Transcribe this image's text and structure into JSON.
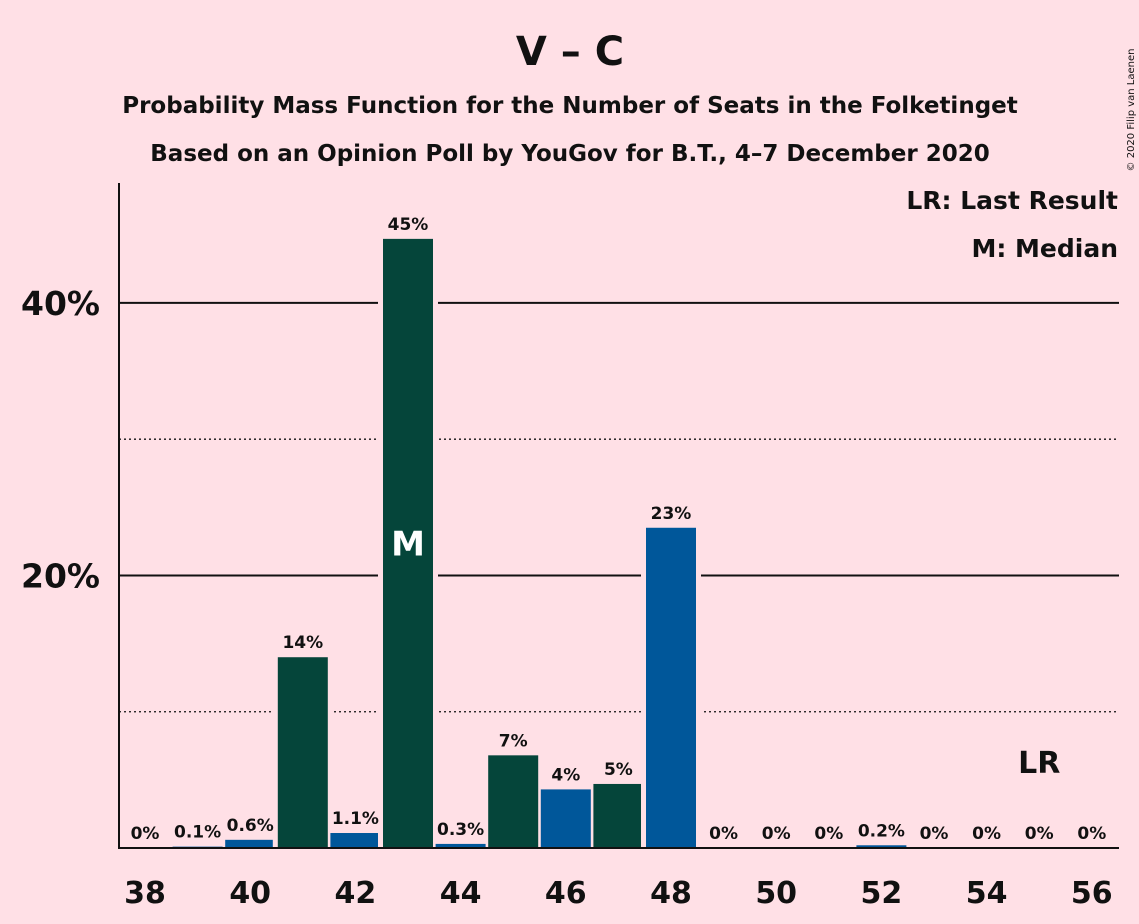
{
  "chart_data": {
    "type": "bar",
    "title": "V – C",
    "subtitle": "Probability Mass Function for the Number of Seats in the Folketinget",
    "subtitle2": "Based on an Opinion Poll by YouGov for B.T., 4–7 December 2020",
    "copyright": "© 2020 Filip van Laenen",
    "xlabel": "",
    "ylabel": "",
    "ylim": [
      0,
      48.8
    ],
    "solid_gridlines": [
      20,
      40
    ],
    "dotted_gridlines": [
      10,
      30
    ],
    "y_ticks": [
      {
        "value": 20,
        "label": "20%"
      },
      {
        "value": 40,
        "label": "40%"
      }
    ],
    "x_ticks": [
      38,
      40,
      42,
      44,
      46,
      48,
      50,
      52,
      54,
      56
    ],
    "x_range": [
      38,
      56
    ],
    "bars": [
      {
        "x": 38,
        "value": 0,
        "label": "0%",
        "color": "#00579a"
      },
      {
        "x": 39,
        "value": 0.1,
        "label": "0.1%",
        "color": "#00579a"
      },
      {
        "x": 40,
        "value": 0.6,
        "label": "0.6%",
        "color": "#00579a"
      },
      {
        "x": 41,
        "value": 14,
        "label": "14%",
        "color": "#05453a"
      },
      {
        "x": 42,
        "value": 1.1,
        "label": "1.1%",
        "color": "#00579a"
      },
      {
        "x": 43,
        "value": 44.7,
        "label": "45%",
        "color": "#05453a"
      },
      {
        "x": 44,
        "value": 0.3,
        "label": "0.3%",
        "color": "#00579a"
      },
      {
        "x": 45,
        "value": 6.8,
        "label": "7%",
        "color": "#05453a"
      },
      {
        "x": 46,
        "value": 4.3,
        "label": "4%",
        "color": "#00579a"
      },
      {
        "x": 47,
        "value": 4.7,
        "label": "5%",
        "color": "#05453a"
      },
      {
        "x": 48,
        "value": 23.5,
        "label": "23%",
        "color": "#00579a"
      },
      {
        "x": 49,
        "value": 0,
        "label": "0%",
        "color": "#00579a"
      },
      {
        "x": 50,
        "value": 0,
        "label": "0%",
        "color": "#00579a"
      },
      {
        "x": 51,
        "value": 0,
        "label": "0%",
        "color": "#00579a"
      },
      {
        "x": 52,
        "value": 0.2,
        "label": "0.2%",
        "color": "#00579a"
      },
      {
        "x": 53,
        "value": 0,
        "label": "0%",
        "color": "#00579a"
      },
      {
        "x": 54,
        "value": 0,
        "label": "0%",
        "color": "#00579a"
      },
      {
        "x": 55,
        "value": 0,
        "label": "0%",
        "color": "#00579a"
      },
      {
        "x": 56,
        "value": 0,
        "label": "0%",
        "color": "#00579a"
      }
    ],
    "median": {
      "x": 43,
      "label": "M"
    },
    "last_result": {
      "x": 55,
      "label": "LR"
    },
    "legend": [
      "LR: Last Result",
      "M: Median"
    ],
    "legend_position": "top-right"
  }
}
